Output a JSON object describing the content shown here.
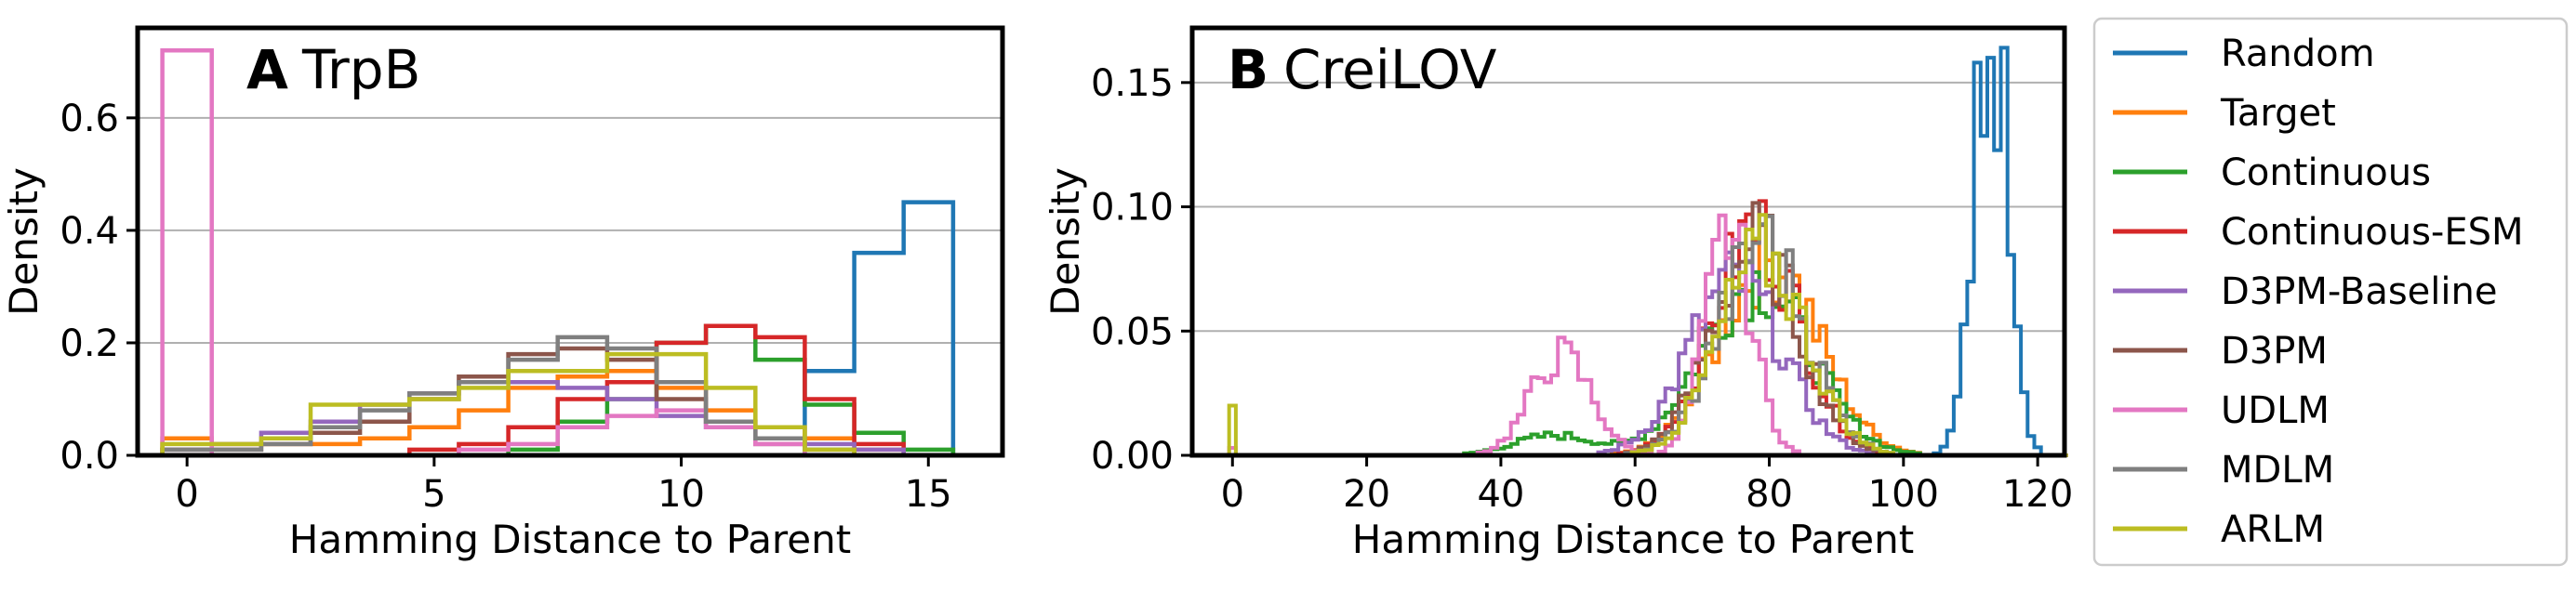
{
  "legend": {
    "entries": [
      {
        "name": "Random",
        "color": "#1f77b4"
      },
      {
        "name": "Target",
        "color": "#ff7f0e"
      },
      {
        "name": "Continuous",
        "color": "#2ca02c"
      },
      {
        "name": "Continuous-ESM",
        "color": "#d62728"
      },
      {
        "name": "D3PM-Baseline",
        "color": "#9467bd"
      },
      {
        "name": "D3PM",
        "color": "#8c564b"
      },
      {
        "name": "UDLM",
        "color": "#e377c2"
      },
      {
        "name": "MDLM",
        "color": "#7f7f7f"
      },
      {
        "name": "ARLM",
        "color": "#bcbd22"
      }
    ],
    "placement": "right"
  },
  "chart_data": [
    {
      "type": "histogram",
      "panel": "A",
      "title": "TrpB",
      "xlabel": "Hamming Distance to Parent",
      "ylabel": "Density",
      "xlim": [
        -1.0,
        16.5
      ],
      "ylim": [
        0,
        0.76
      ],
      "xticks": [
        0,
        5,
        10,
        15
      ],
      "yticks": [
        0.0,
        0.2,
        0.4,
        0.6
      ],
      "ytick_labels": [
        "0.0",
        "0.2",
        "0.4",
        "0.6"
      ],
      "grid": "horizontal",
      "bin_edges": [
        -0.5,
        0.5,
        1.5,
        2.5,
        3.5,
        4.5,
        5.5,
        6.5,
        7.5,
        8.5,
        9.5,
        10.5,
        11.5,
        12.5,
        13.5,
        14.5,
        15.5
      ],
      "series": [
        {
          "name": "Random",
          "values": [
            0,
            0,
            0,
            0,
            0,
            0,
            0,
            0,
            0,
            0,
            0,
            0,
            0,
            0.15,
            0.36,
            0.45
          ]
        },
        {
          "name": "Target",
          "values": [
            0.03,
            0.02,
            0.02,
            0.02,
            0.03,
            0.05,
            0.08,
            0.12,
            0.14,
            0.15,
            0.12,
            0.08,
            0.05,
            0.03,
            0.01,
            0
          ]
        },
        {
          "name": "Continuous",
          "values": [
            0,
            0,
            0,
            0,
            0,
            0,
            0,
            0.01,
            0.06,
            0.1,
            0.2,
            0.23,
            0.17,
            0.09,
            0.04,
            0.01
          ]
        },
        {
          "name": "Continuous-ESM",
          "values": [
            0,
            0,
            0,
            0,
            0,
            0.01,
            0.02,
            0.05,
            0.1,
            0.13,
            0.2,
            0.23,
            0.21,
            0.1,
            0.02,
            0
          ]
        },
        {
          "name": "D3PM-Baseline",
          "values": [
            0.01,
            0.02,
            0.04,
            0.06,
            0.09,
            0.11,
            0.13,
            0.13,
            0.12,
            0.1,
            0.07,
            0.05,
            0.03,
            0.02,
            0.01,
            0
          ]
        },
        {
          "name": "D3PM",
          "values": [
            0.01,
            0.01,
            0.02,
            0.04,
            0.06,
            0.1,
            0.14,
            0.18,
            0.19,
            0.17,
            0.1,
            0.06,
            0.02,
            0.01,
            0,
            0
          ]
        },
        {
          "name": "UDLM",
          "values": [
            0.72,
            0,
            0,
            0,
            0,
            0,
            0.01,
            0.02,
            0.05,
            0.07,
            0.08,
            0.05,
            0.02,
            0,
            0,
            0
          ]
        },
        {
          "name": "MDLM",
          "values": [
            0.01,
            0.01,
            0.02,
            0.05,
            0.08,
            0.11,
            0.13,
            0.17,
            0.21,
            0.19,
            0.13,
            0.06,
            0.03,
            0.01,
            0,
            0
          ]
        },
        {
          "name": "ARLM",
          "values": [
            0.02,
            0.02,
            0.03,
            0.09,
            0.09,
            0.1,
            0.12,
            0.15,
            0.15,
            0.18,
            0.18,
            0.12,
            0.05,
            0.01,
            0,
            0
          ]
        }
      ]
    },
    {
      "type": "histogram",
      "panel": "B",
      "title": "CreiLOV",
      "xlabel": "Hamming Distance to Parent",
      "ylabel": "Density",
      "xlim": [
        -6,
        124
      ],
      "ylim": [
        0,
        0.172
      ],
      "xticks": [
        0,
        20,
        40,
        60,
        80,
        100,
        120
      ],
      "yticks": [
        0.0,
        0.05,
        0.1,
        0.15
      ],
      "ytick_labels": [
        "0.00",
        "0.05",
        "0.10",
        "0.15"
      ],
      "grid": "horizontal",
      "bin_start": -0.5,
      "bin_width": 1,
      "series": [
        {
          "name": "Random",
          "mean": 113,
          "sd": 2.5,
          "peak": 0.163,
          "pts": [
            [
              111,
              0.158
            ],
            [
              113,
              0.16
            ],
            [
              115,
              0.164
            ]
          ]
        },
        {
          "name": "Target",
          "mean": 80,
          "sd": 7.5,
          "peak": 0.078,
          "pts": []
        },
        {
          "name": "Continuous",
          "mean": 78,
          "sd": 8,
          "peak": 0.07,
          "tail": {
            "mean": 48,
            "sd": 6,
            "peak": 0.008
          }
        },
        {
          "name": "Continuous-ESM",
          "mean": 78,
          "sd": 6.5,
          "peak": 0.09,
          "pts": [
            [
              77,
              0.097
            ]
          ]
        },
        {
          "name": "D3PM-Baseline",
          "mean": 75,
          "sd": 7,
          "peak": 0.07,
          "pts": []
        },
        {
          "name": "D3PM",
          "mean": 78,
          "sd": 6.5,
          "peak": 0.085,
          "pts": []
        },
        {
          "name": "UDLM",
          "mean": 74,
          "sd": 3.5,
          "peak": 0.09,
          "second": {
            "mean": 49,
            "sd": 4.5,
            "peak": 0.04
          },
          "spike": [
            [
              0,
              0.003
            ]
          ]
        },
        {
          "name": "MDLM",
          "mean": 79,
          "sd": 6.5,
          "peak": 0.085,
          "pts": [
            [
              79,
              0.093
            ]
          ]
        },
        {
          "name": "ARLM",
          "mean": 79,
          "sd": 6.5,
          "peak": 0.08,
          "spike": [
            [
              0,
              0.02
            ]
          ]
        }
      ]
    }
  ]
}
